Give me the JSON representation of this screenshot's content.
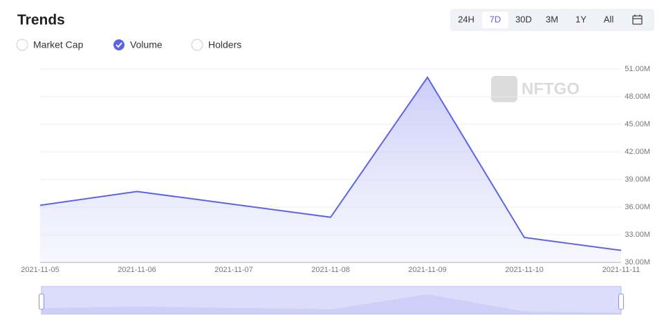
{
  "header": {
    "title": "Trends"
  },
  "metrics": [
    "Market Cap",
    "Volume",
    "Holders"
  ],
  "ranges": [
    "24H",
    "7D",
    "30D",
    "3M",
    "1Y",
    "All"
  ],
  "watermark": "NFTGO",
  "chart_data": {
    "type": "line",
    "x": [
      "2021-11-05",
      "2021-11-06",
      "2021-11-07",
      "2021-11-08",
      "2021-11-09",
      "2021-11-10",
      "2021-11-11"
    ],
    "series": [
      {
        "name": "Volume",
        "color": "#5b63e8",
        "values": [
          36.2,
          37.7,
          36.3,
          34.9,
          50.1,
          32.7,
          31.3
        ]
      }
    ],
    "ylim": [
      30,
      51
    ],
    "yticks": [
      {
        "value": 30,
        "label": "30.00M"
      },
      {
        "value": 33,
        "label": "33.00M"
      },
      {
        "value": 36,
        "label": "36.00M"
      },
      {
        "value": 39,
        "label": "39.00M"
      },
      {
        "value": 42,
        "label": "42.00M"
      },
      {
        "value": 45,
        "label": "45.00M"
      },
      {
        "value": 48,
        "label": "48.00M"
      },
      {
        "value": 51,
        "label": "51.00M"
      }
    ],
    "grid": true
  }
}
